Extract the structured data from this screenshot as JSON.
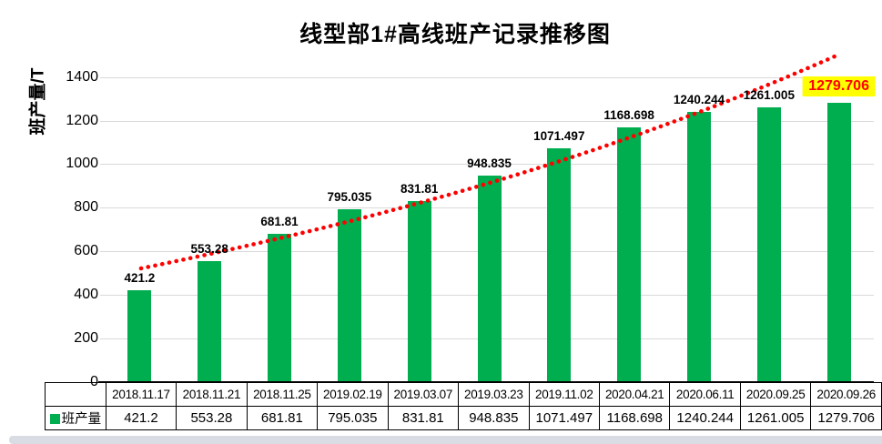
{
  "chart_data": {
    "type": "bar",
    "title": "线型部1#高线班产记录推移图",
    "xlabel": "",
    "ylabel": "班产量/T",
    "categories": [
      "2018.11.17",
      "2018.11.21",
      "2018.11.25",
      "2019.02.19",
      "2019.03.07",
      "2019.03.23",
      "2019.11.02",
      "2020.04.21",
      "2020.06.11",
      "2020.09.25",
      "2020.09.26"
    ],
    "series": [
      {
        "name": "班产量",
        "type": "bar",
        "color": "#00AE50",
        "values": [
          421.2,
          553.28,
          681.81,
          795.035,
          831.81,
          948.835,
          1071.497,
          1168.698,
          1240.244,
          1261.005,
          1279.706
        ]
      },
      {
        "name": "趋势线",
        "type": "dotted_trendline",
        "color": "#FF0000"
      }
    ],
    "value_labels": [
      "421.2",
      "553.28",
      "681.81",
      "795.035",
      "831.81",
      "948.835",
      "1071.497",
      "1168.698",
      "1240.244",
      "1261.005",
      "1279.706"
    ],
    "ylim": [
      0,
      1400
    ],
    "yticks": [
      0,
      200,
      400,
      600,
      800,
      1000,
      1200,
      1400
    ],
    "grid": "horizontal",
    "data_labels": true,
    "legend_position": "data-table-row-header",
    "data_table_shown": true,
    "highlight_last_label": {
      "index": 10,
      "value": "1279.706",
      "text_color": "#FF0000",
      "background": "#FFFF00"
    }
  },
  "legend": {
    "label": "班产量"
  },
  "colors": {
    "bar": "#00AE50",
    "trendline": "#FF0000",
    "gridline": "#D9D9D9",
    "axis": "#000000",
    "highlight_bg": "#FFFF00",
    "highlight_text": "#FF0000",
    "bottom_strip": "#D9DDE3"
  }
}
